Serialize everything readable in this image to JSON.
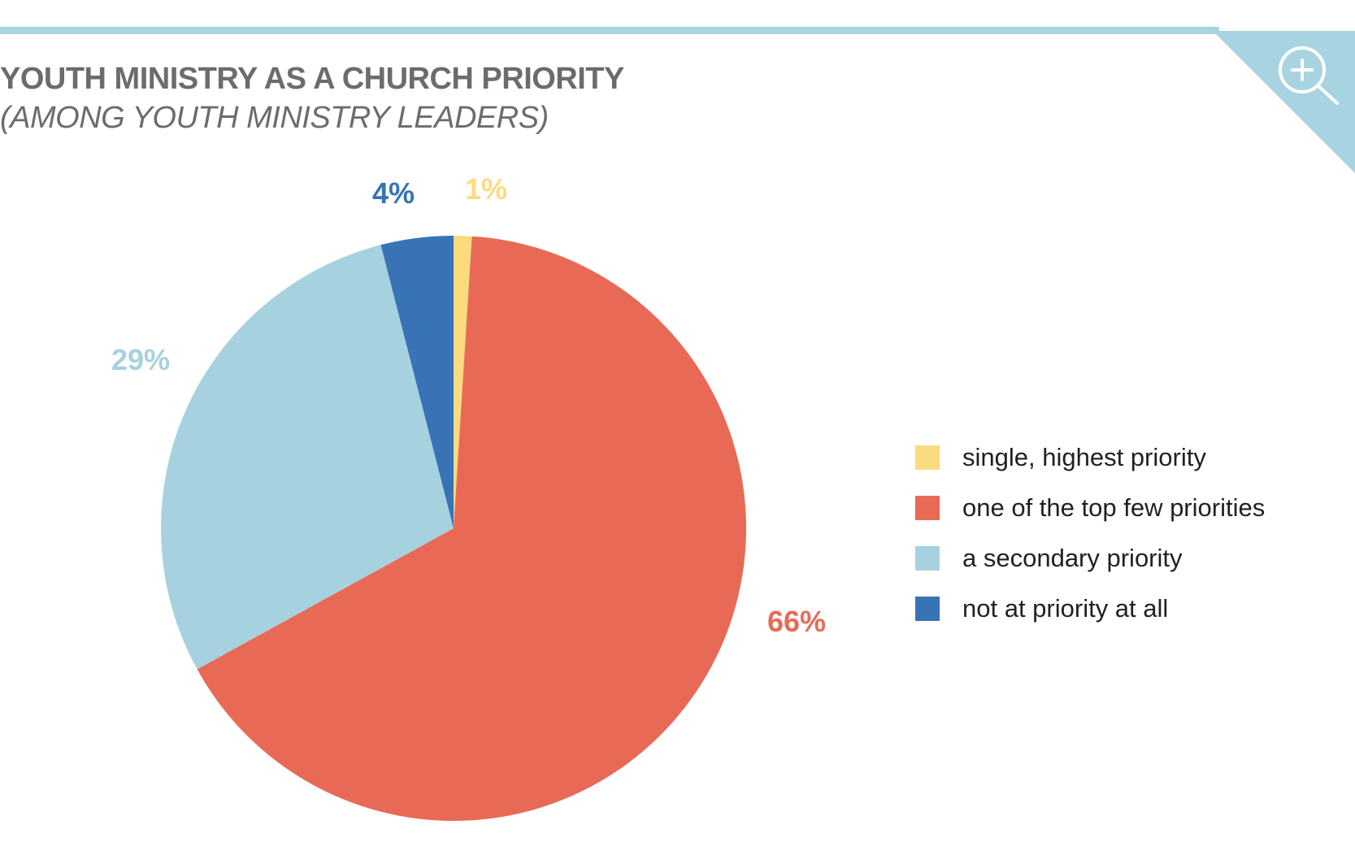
{
  "header": {
    "zoom_icon": "magnifier-plus-icon",
    "accent_color": "#a8d4e1"
  },
  "chart_data": {
    "type": "pie",
    "title": "YOUTH MINISTRY AS A CHURCH PRIORITY",
    "subtitle": "(AMONG YOUTH MINISTRY LEADERS)",
    "legend_position": "right",
    "slices": [
      {
        "label": "single, highest priority",
        "value": 1,
        "value_label": "1%",
        "color": "#fadb7e"
      },
      {
        "label": "one of the top few priorities",
        "value": 66,
        "value_label": "66%",
        "color": "#e86a56"
      },
      {
        "label": "a secondary priority",
        "value": 29,
        "value_label": "29%",
        "color": "#a6d2df"
      },
      {
        "label": "not at priority at all",
        "value": 4,
        "value_label": "4%",
        "color": "#3873b6"
      }
    ]
  }
}
